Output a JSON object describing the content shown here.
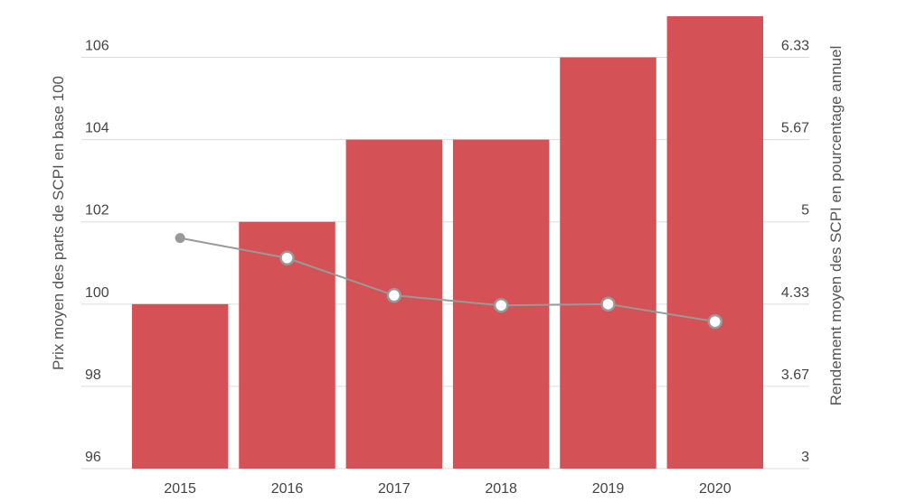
{
  "chart_data": {
    "type": "bar",
    "title": "",
    "categories": [
      "2015",
      "2016",
      "2017",
      "2018",
      "2019",
      "2020"
    ],
    "xlabel": "",
    "ylabel": "Prix moyen des parts de SCPI en base 100",
    "y2label": "Rendement moyen des SCPI en pourcentage annuel",
    "ylim": [
      96,
      107
    ],
    "y2lim": [
      3,
      6.63
    ],
    "yticks": [
      "96",
      "98",
      "100",
      "102",
      "104",
      "106"
    ],
    "y2ticks": [
      "3",
      "3.67",
      "4.33",
      "5",
      "5.67",
      "6.33"
    ],
    "grid": true,
    "legend": "none",
    "series": [
      {
        "type": "bar",
        "axis": "left",
        "color": "#d45156",
        "values": [
          100,
          102,
          104,
          104,
          106,
          107
        ]
      },
      {
        "type": "line",
        "axis": "right",
        "color": "#999999",
        "values": [
          4.85,
          4.69,
          4.39,
          4.31,
          4.32,
          4.18
        ]
      }
    ]
  }
}
